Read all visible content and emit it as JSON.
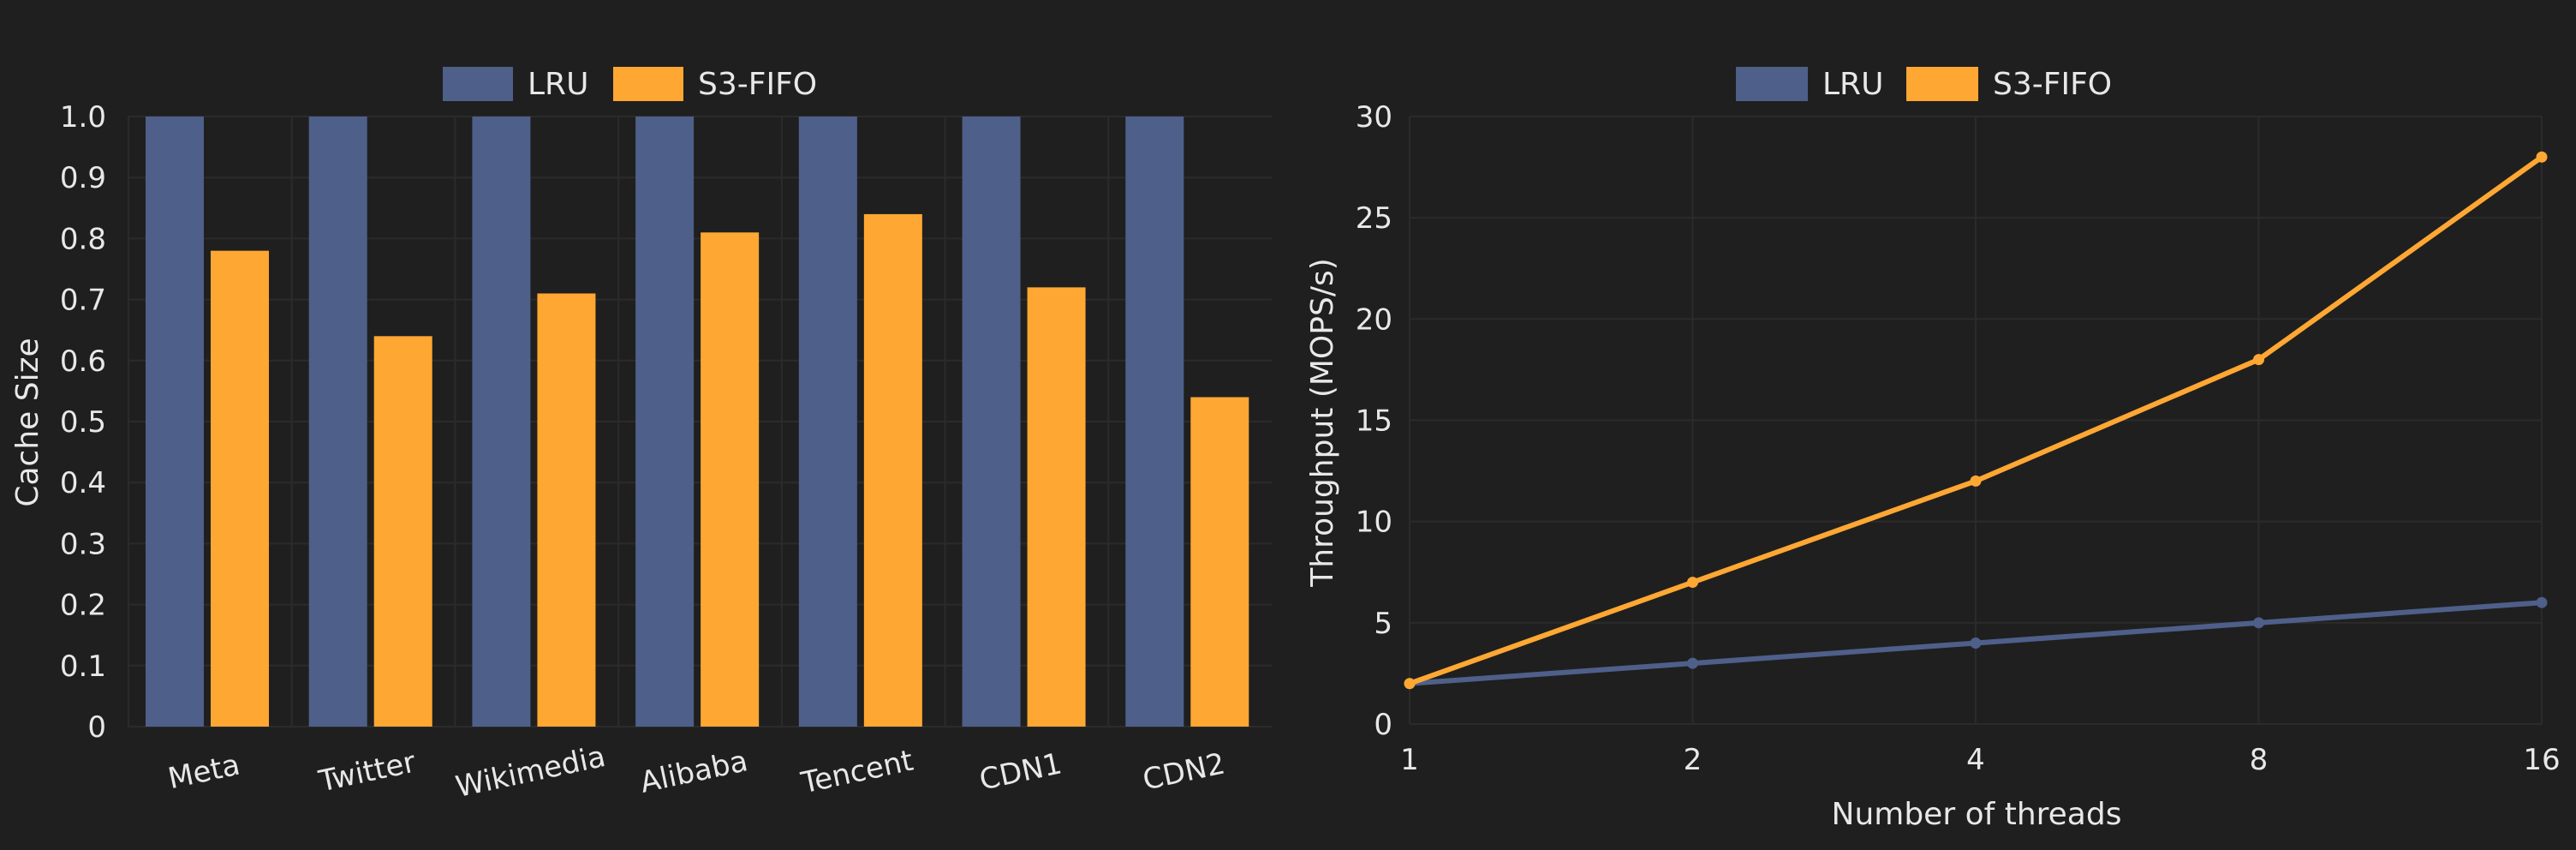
{
  "chart_data": [
    {
      "type": "bar",
      "categories": [
        "Meta",
        "Twitter",
        "Wikimedia",
        "Alibaba",
        "Tencent",
        "CDN1",
        "CDN2"
      ],
      "series": [
        {
          "name": "LRU",
          "color": "#4e5f8a",
          "values": [
            1.0,
            1.0,
            1.0,
            1.0,
            1.0,
            1.0,
            1.0
          ]
        },
        {
          "name": "S3-FIFO",
          "color": "#ffa733",
          "values": [
            0.78,
            0.64,
            0.71,
            0.81,
            0.84,
            0.72,
            0.54
          ]
        }
      ],
      "yticks": [
        "0",
        "0.1",
        "0.2",
        "0.3",
        "0.4",
        "0.5",
        "0.6",
        "0.7",
        "0.8",
        "0.9",
        "1.0"
      ],
      "ylim": [
        0,
        1.0
      ],
      "xlabel": "",
      "ylabel": "Cache Size",
      "legend": "top-center",
      "grid": true
    },
    {
      "type": "line",
      "x": [
        "1",
        "2",
        "4",
        "8",
        "16"
      ],
      "series": [
        {
          "name": "LRU",
          "color": "#4e5f8a",
          "values": [
            2,
            3,
            4,
            5,
            6
          ]
        },
        {
          "name": "S3-FIFO",
          "color": "#ffa733",
          "values": [
            2,
            7,
            12,
            18,
            28
          ]
        }
      ],
      "yticks": [
        "0",
        "5",
        "10",
        "15",
        "20",
        "25",
        "30"
      ],
      "ylim": [
        0,
        30
      ],
      "xlabel": "Number of threads",
      "ylabel": "Throughput (MOPS/s)",
      "legend": "top-center",
      "grid": true
    }
  ]
}
